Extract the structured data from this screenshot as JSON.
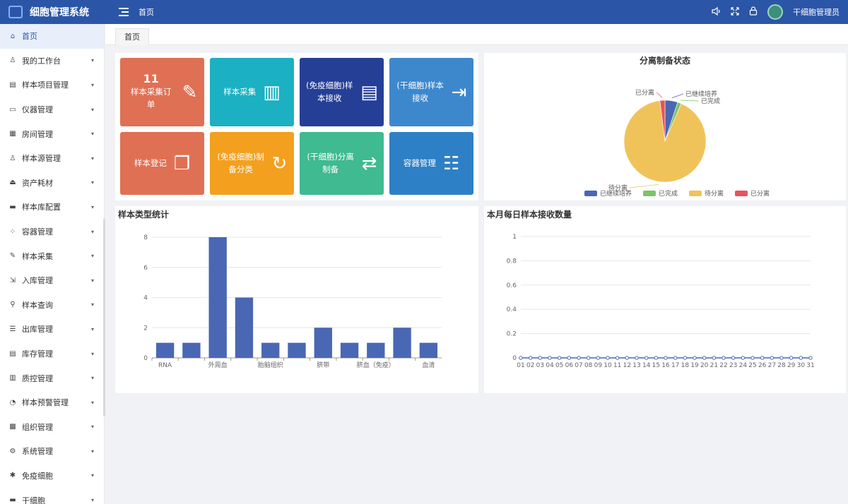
{
  "header": {
    "app_title": "细胞管理系统",
    "page_title": "首页",
    "user_name": "干细胞管理员",
    "icons": [
      "volume-icon",
      "fullscreen-icon",
      "lock-icon"
    ]
  },
  "sidebar": {
    "items": [
      {
        "label": "首页",
        "icon": "home-icon",
        "active": true,
        "has_children": false
      },
      {
        "label": "我的工作台",
        "icon": "user-icon",
        "has_children": true
      },
      {
        "label": "样本项目管理",
        "icon": "document-icon",
        "has_children": true
      },
      {
        "label": "仪器管理",
        "icon": "monitor-icon",
        "has_children": true
      },
      {
        "label": "房间管理",
        "icon": "grid-icon",
        "has_children": true
      },
      {
        "label": "样本源管理",
        "icon": "user-icon",
        "has_children": true
      },
      {
        "label": "资产耗材",
        "icon": "inbox-icon",
        "has_children": true
      },
      {
        "label": "样本库配置",
        "icon": "storage-icon",
        "has_children": true
      },
      {
        "label": "容器管理",
        "icon": "circles-icon",
        "has_children": true
      },
      {
        "label": "样本采集",
        "icon": "edit-icon",
        "has_children": true
      },
      {
        "label": "入库管理",
        "icon": "import-icon",
        "has_children": true
      },
      {
        "label": "样本查询",
        "icon": "search-icon",
        "has_children": true
      },
      {
        "label": "出库管理",
        "icon": "list-icon",
        "has_children": true
      },
      {
        "label": "库存管理",
        "icon": "document-icon",
        "has_children": true
      },
      {
        "label": "质控管理",
        "icon": "file-icon",
        "has_children": true
      },
      {
        "label": "样本预警管理",
        "icon": "gauge-icon",
        "has_children": true
      },
      {
        "label": "组织管理",
        "icon": "apps-icon",
        "has_children": true
      },
      {
        "label": "系统管理",
        "icon": "gear-icon",
        "has_children": true
      },
      {
        "label": "免疫细胞",
        "icon": "cell-icon",
        "has_children": true
      },
      {
        "label": "干细胞",
        "icon": "storage-icon",
        "has_children": true
      }
    ]
  },
  "tabs": [
    {
      "label": "首页"
    }
  ],
  "tiles": [
    {
      "count": "11",
      "label": "样本采集订单",
      "color": "#e07054",
      "icon": "edit-icon"
    },
    {
      "label": "样本采集",
      "color": "#1bb0c2",
      "icon": "layout-icon"
    },
    {
      "label": "(免疫细胞)样本接收",
      "color": "#253f97",
      "icon": "file-icon"
    },
    {
      "label": "(干细胞)样本接收",
      "color": "#3d88cc",
      "icon": "exit-icon"
    },
    {
      "label": "样本登记",
      "color": "#e07054",
      "icon": "copy-icon"
    },
    {
      "label": "(免疫细胞)制备分类",
      "color": "#f3a01f",
      "icon": "refresh-file-icon"
    },
    {
      "label": "(干细胞)分离制备",
      "color": "#3fba91",
      "icon": "swap-icon"
    },
    {
      "label": "容器管理",
      "color": "#2e80c6",
      "icon": "server-icon"
    }
  ],
  "chart_data": [
    {
      "type": "pie",
      "title": "分离制备状态",
      "slices": [
        {
          "name": "已继续培养",
          "value": 5,
          "color": "#4a67b4"
        },
        {
          "name": "已完成",
          "value": 1.5,
          "color": "#7dc36b"
        },
        {
          "name": "待分离",
          "value": 91.5,
          "color": "#f0c35a"
        },
        {
          "name": "已分离",
          "value": 2,
          "color": "#e6545c"
        }
      ],
      "legend": [
        "已继续培养",
        "已完成",
        "待分离",
        "已分离"
      ],
      "legend_position": "bottom"
    },
    {
      "type": "bar",
      "title": "样本类型统计",
      "categories": [
        "RNA",
        "",
        "外周血",
        "",
        "胎脑组织",
        "",
        "脐带",
        "",
        "脐血（免疫）",
        "",
        "血清"
      ],
      "values": [
        1,
        1,
        8,
        4,
        1,
        1,
        2,
        1,
        1,
        2,
        1
      ],
      "y_ticks": [
        "0",
        "2",
        "4",
        "6",
        "8"
      ],
      "ylim": [
        0,
        8
      ],
      "color": "#4a67b4",
      "grid": true
    },
    {
      "type": "line",
      "title": "本月每日样本接收数量",
      "categories": [
        "01",
        "02",
        "03",
        "04",
        "05",
        "06",
        "07",
        "08",
        "09",
        "10",
        "11",
        "12",
        "13",
        "14",
        "15",
        "16",
        "17",
        "18",
        "19",
        "20",
        "21",
        "22",
        "23",
        "24",
        "25",
        "26",
        "27",
        "28",
        "29",
        "30",
        "31"
      ],
      "values": [
        0,
        0,
        0,
        0,
        0,
        0,
        0,
        0,
        0,
        0,
        0,
        0,
        0,
        0,
        0,
        0,
        0,
        0,
        0,
        0,
        0,
        0,
        0,
        0,
        0,
        0,
        0,
        0,
        0,
        0,
        0
      ],
      "y_ticks": [
        "0",
        "0.2",
        "0.4",
        "0.6",
        "0.8",
        "1"
      ],
      "ylim": [
        0,
        1
      ],
      "color": "#4a67b4",
      "grid": true
    }
  ]
}
